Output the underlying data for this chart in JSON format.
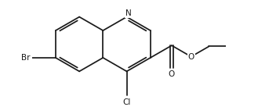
{
  "background": "#ffffff",
  "line_color": "#1a1a1a",
  "line_width": 1.25,
  "font_size": 7.5,
  "figsize": [
    3.29,
    1.37
  ],
  "dpi": 100,
  "xlim": [
    -2.6,
    4.5
  ],
  "ylim": [
    -2.1,
    1.6
  ]
}
